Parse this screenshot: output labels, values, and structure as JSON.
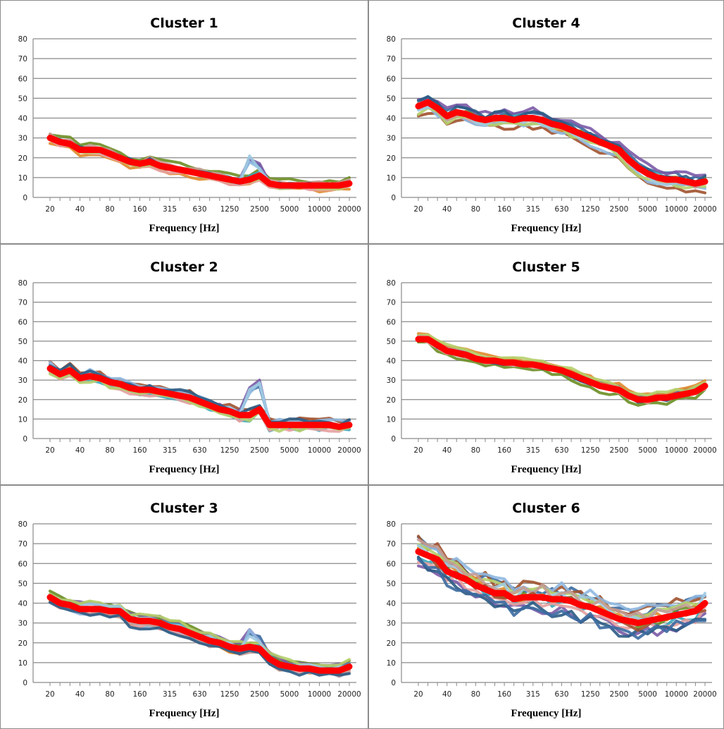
{
  "chart_data": [
    {
      "type": "line",
      "title": "Cluster 1",
      "xlabel": "Frequency [Hz]",
      "ylabel": "",
      "ylim": [
        0,
        80
      ],
      "yticks": [
        0,
        10,
        20,
        30,
        40,
        50,
        60,
        70,
        80
      ],
      "x": [
        "20",
        "25",
        "31.5",
        "40",
        "50",
        "63",
        "80",
        "100",
        "125",
        "160",
        "200",
        "250",
        "315",
        "400",
        "500",
        "630",
        "800",
        "1000",
        "1250",
        "1600",
        "2000",
        "2500",
        "3150",
        "4000",
        "5000",
        "6300",
        "8000",
        "10000",
        "12500",
        "16000",
        "20000"
      ],
      "x_tick_labels": [
        "20",
        "40",
        "80",
        "160",
        "315",
        "630",
        "1250",
        "2500",
        "5000",
        "10000",
        "20000"
      ],
      "grid": true,
      "mean_color": "#ff0000",
      "series": [
        {
          "name": "",
          "color": "#ff0000",
          "role": "mean",
          "values": [
            30,
            28,
            27,
            24,
            24,
            24,
            22,
            20,
            18,
            17,
            18,
            16,
            15,
            14,
            13,
            12,
            11,
            10,
            9,
            8,
            9,
            11,
            7,
            6,
            6,
            6,
            6,
            6,
            6,
            6,
            7
          ]
        }
      ],
      "member_count": 12,
      "member_spread": 2.5,
      "member_highlights": [
        {
          "x_index": 20,
          "value": 21
        },
        {
          "x_index": 21,
          "value": 18
        }
      ]
    },
    {
      "type": "line",
      "title": "Cluster 2",
      "xlabel": "Frequency [Hz]",
      "ylabel": "",
      "ylim": [
        0,
        80
      ],
      "yticks": [
        0,
        10,
        20,
        30,
        40,
        50,
        60,
        70,
        80
      ],
      "x": [
        "20",
        "25",
        "31.5",
        "40",
        "50",
        "63",
        "80",
        "100",
        "125",
        "160",
        "200",
        "250",
        "315",
        "400",
        "500",
        "630",
        "800",
        "1000",
        "1250",
        "1600",
        "2000",
        "2500",
        "3150",
        "4000",
        "5000",
        "6300",
        "8000",
        "10000",
        "12500",
        "16000",
        "20000"
      ],
      "x_tick_labels": [
        "20",
        "40",
        "80",
        "160",
        "315",
        "630",
        "1250",
        "2500",
        "5000",
        "10000",
        "20000"
      ],
      "grid": true,
      "mean_color": "#ff0000",
      "series": [
        {
          "name": "",
          "color": "#ff0000",
          "role": "mean",
          "values": [
            36,
            33,
            35,
            31,
            32,
            31,
            29,
            28,
            26,
            25,
            25,
            24,
            23,
            22,
            21,
            19,
            17,
            15,
            14,
            12,
            12,
            15,
            7,
            7,
            7,
            7,
            7,
            7,
            7,
            6,
            7
          ]
        }
      ],
      "member_count": 12,
      "member_spread": 3,
      "member_highlights": [
        {
          "x_index": 20,
          "value": 27
        },
        {
          "x_index": 21,
          "value": 30
        }
      ]
    },
    {
      "type": "line",
      "title": "Cluster 3",
      "xlabel": "Frequency [Hz]",
      "ylabel": "",
      "ylim": [
        0,
        80
      ],
      "yticks": [
        0,
        10,
        20,
        30,
        40,
        50,
        60,
        70,
        80
      ],
      "x": [
        "20",
        "25",
        "31.5",
        "40",
        "50",
        "63",
        "80",
        "100",
        "125",
        "160",
        "200",
        "250",
        "315",
        "400",
        "500",
        "630",
        "800",
        "1000",
        "1250",
        "1600",
        "2000",
        "2500",
        "3150",
        "4000",
        "5000",
        "6300",
        "8000",
        "10000",
        "12500",
        "16000",
        "20000"
      ],
      "x_tick_labels": [
        "20",
        "40",
        "80",
        "160",
        "315",
        "630",
        "1250",
        "2500",
        "5000",
        "10000",
        "20000"
      ],
      "grid": true,
      "mean_color": "#ff0000",
      "series": [
        {
          "name": "",
          "color": "#ff0000",
          "role": "mean",
          "values": [
            43,
            40,
            39,
            37,
            37,
            37,
            36,
            36,
            32,
            31,
            31,
            30,
            28,
            27,
            25,
            23,
            21,
            20,
            18,
            17,
            18,
            17,
            12,
            9,
            8,
            7,
            7,
            6,
            6,
            6,
            8
          ]
        }
      ],
      "member_count": 12,
      "member_spread": 3,
      "member_highlights": [
        {
          "x_index": 20,
          "value": 27
        },
        {
          "x_index": 21,
          "value": 24
        }
      ]
    },
    {
      "type": "line",
      "title": "Cluster 4",
      "xlabel": "Frequency [Hz]",
      "ylabel": "",
      "ylim": [
        0,
        80
      ],
      "yticks": [
        0,
        10,
        20,
        30,
        40,
        50,
        60,
        70,
        80
      ],
      "x": [
        "20",
        "25",
        "31.5",
        "40",
        "50",
        "63",
        "80",
        "100",
        "125",
        "160",
        "200",
        "250",
        "315",
        "400",
        "500",
        "630",
        "800",
        "1000",
        "1250",
        "1600",
        "2000",
        "2500",
        "3150",
        "4000",
        "5000",
        "6300",
        "8000",
        "10000",
        "12500",
        "16000",
        "20000"
      ],
      "x_tick_labels": [
        "20",
        "40",
        "80",
        "160",
        "315",
        "630",
        "1250",
        "2500",
        "5000",
        "10000",
        "20000"
      ],
      "grid": true,
      "mean_color": "#ff0000",
      "series": [
        {
          "name": "",
          "color": "#ff0000",
          "role": "mean",
          "values": [
            46,
            48,
            45,
            41,
            43,
            42,
            40,
            39,
            40,
            40,
            39,
            40,
            40,
            39,
            37,
            36,
            34,
            32,
            30,
            28,
            26,
            24,
            19,
            15,
            12,
            10,
            9,
            9,
            8,
            7,
            8
          ]
        }
      ],
      "member_count": 12,
      "member_spread": 4,
      "member_highlights": []
    },
    {
      "type": "line",
      "title": "Cluster 5",
      "xlabel": "Frequency [Hz]",
      "ylabel": "",
      "ylim": [
        0,
        80
      ],
      "yticks": [
        0,
        10,
        20,
        30,
        40,
        50,
        60,
        70,
        80
      ],
      "x": [
        "20",
        "25",
        "31.5",
        "40",
        "50",
        "63",
        "80",
        "100",
        "125",
        "160",
        "200",
        "250",
        "315",
        "400",
        "500",
        "630",
        "800",
        "1000",
        "1250",
        "1600",
        "2000",
        "2500",
        "3150",
        "4000",
        "5000",
        "6300",
        "8000",
        "10000",
        "12500",
        "16000",
        "20000"
      ],
      "x_tick_labels": [
        "20",
        "40",
        "80",
        "160",
        "315",
        "630",
        "1250",
        "2500",
        "5000",
        "10000",
        "20000"
      ],
      "grid": true,
      "mean_color": "#ff0000",
      "series": [
        {
          "name": "",
          "color": "#ff0000",
          "role": "mean",
          "values": [
            51,
            51,
            48,
            45,
            44,
            43,
            41,
            40,
            40,
            39,
            39,
            38,
            38,
            37,
            36,
            35,
            33,
            31,
            29,
            27,
            26,
            25,
            22,
            20,
            20,
            21,
            21,
            22,
            23,
            24,
            27
          ]
        }
      ],
      "member_count": 12,
      "member_spread": 2.5,
      "member_highlights": []
    },
    {
      "type": "line",
      "title": "Cluster 6",
      "xlabel": "Frequency [Hz]",
      "ylabel": "",
      "ylim": [
        0,
        80
      ],
      "yticks": [
        0,
        10,
        20,
        30,
        40,
        50,
        60,
        70,
        80
      ],
      "x": [
        "20",
        "25",
        "31.5",
        "40",
        "50",
        "63",
        "80",
        "100",
        "125",
        "160",
        "200",
        "250",
        "315",
        "400",
        "500",
        "630",
        "800",
        "1000",
        "1250",
        "1600",
        "2000",
        "2500",
        "3150",
        "4000",
        "5000",
        "6300",
        "8000",
        "10000",
        "12500",
        "16000",
        "20000"
      ],
      "x_tick_labels": [
        "20",
        "40",
        "80",
        "160",
        "315",
        "630",
        "1250",
        "2500",
        "5000",
        "10000",
        "20000"
      ],
      "grid": true,
      "mean_color": "#ff0000",
      "series": [
        {
          "name": "",
          "color": "#ff0000",
          "role": "mean",
          "values": [
            66,
            64,
            62,
            56,
            54,
            52,
            49,
            47,
            45,
            45,
            42,
            43,
            43,
            43,
            42,
            42,
            41,
            39,
            38,
            36,
            34,
            32,
            31,
            30,
            31,
            32,
            33,
            34,
            35,
            36,
            40
          ]
        }
      ],
      "member_count": 14,
      "member_spread": 7,
      "member_highlights": []
    }
  ],
  "palette": [
    "#3b6aa0",
    "#a0522d",
    "#6b8e23",
    "#7b5aa6",
    "#3aa6b9",
    "#e08a2c",
    "#8fb8e0",
    "#e6a0a0",
    "#b5cf6b",
    "#9ecae1",
    "#c49c94",
    "#2b5b84"
  ]
}
